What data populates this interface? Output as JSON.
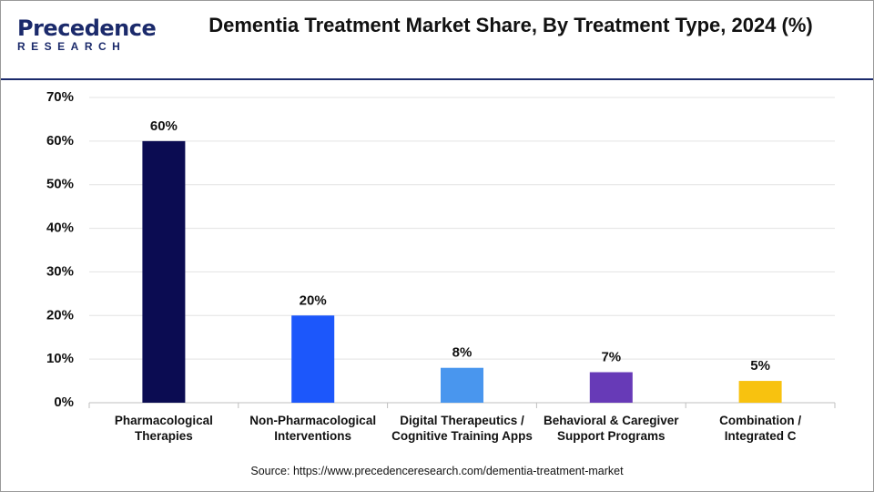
{
  "brand": {
    "name": "Precedence",
    "tagline": "RESEARCH"
  },
  "chart_data": {
    "type": "bar",
    "title": "Dementia Treatment Market Share, By Treatment Type, 2024 (%)",
    "categories": [
      "Pharmacological\nTherapies",
      "Non-Pharmacological\nInterventions",
      "Digital Therapeutics /\nCognitive Training Apps",
      "Behavioral & Caregiver\nSupport Programs",
      "Combination /\nIntegrated C"
    ],
    "values": [
      60,
      20,
      8,
      7,
      5
    ],
    "value_labels": [
      "60%",
      "20%",
      "8%",
      "7%",
      "5%"
    ],
    "colors": [
      "#0b0c52",
      "#1c57fb",
      "#4996ee",
      "#673ab7",
      "#f8c20f"
    ],
    "ylim": [
      0,
      70
    ],
    "yticks": [
      {
        "value": 0,
        "label": "0%"
      },
      {
        "value": 10,
        "label": "10%"
      },
      {
        "value": 20,
        "label": "20%"
      },
      {
        "value": 30,
        "label": "30%"
      },
      {
        "value": 40,
        "label": "40%"
      },
      {
        "value": 50,
        "label": "50%"
      },
      {
        "value": 60,
        "label": "60%"
      },
      {
        "value": 70,
        "label": "70%"
      }
    ],
    "grid": true,
    "source": "Source: https://www.precedenceresearch.com/dementia-treatment-market"
  }
}
